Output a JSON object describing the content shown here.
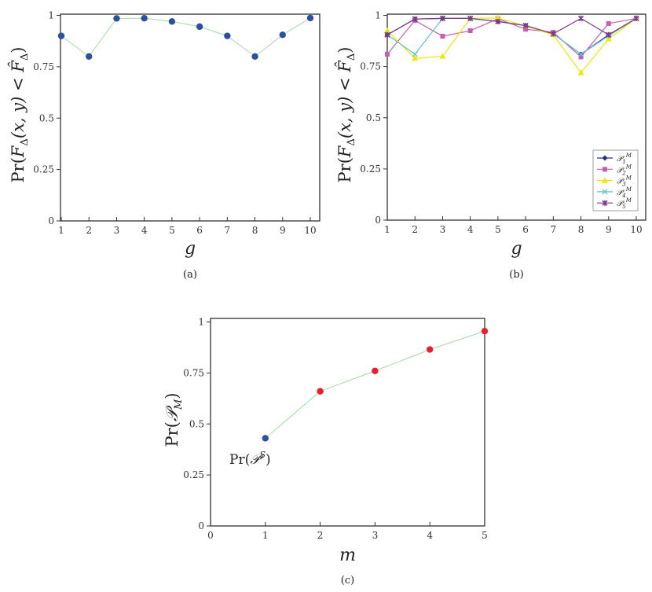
{
  "chart_data": [
    {
      "id": "a",
      "type": "line",
      "caption": "(a)",
      "title": "",
      "xlabel": "g",
      "ylabel": "Pr(F_Δ(x, y) < F̂_Δ)",
      "ylabel_parts": {
        "pre": "Pr(",
        "F": "F",
        "sub": "Δ",
        "mid": "(x, y) < ",
        "Fhat": "F̂",
        "sub2": "Δ",
        "post": ")"
      },
      "x": [
        1,
        2,
        3,
        4,
        5,
        6,
        7,
        8,
        9,
        10
      ],
      "xticks": [
        "1",
        "2",
        "3",
        "4",
        "5",
        "6",
        "7",
        "8",
        "9",
        "10"
      ],
      "yticks": [
        "0",
        "0.25",
        "0.5",
        "0.75",
        "1"
      ],
      "ylim": [
        0,
        1
      ],
      "xlim": [
        1,
        10
      ],
      "grid": false,
      "series": [
        {
          "name": "Pr",
          "values": [
            0.9,
            0.8,
            0.985,
            0.986,
            0.97,
            0.945,
            0.9,
            0.8,
            0.905,
            0.987
          ],
          "marker_color": "#2d4fa0",
          "line_color": "#9ad89a",
          "marker": "circle"
        }
      ]
    },
    {
      "id": "b",
      "type": "line",
      "caption": "(b)",
      "title": "",
      "xlabel": "g",
      "ylabel": "Pr(F_Δ(x, y) < F̂_Δ)",
      "ylabel_parts": {
        "pre": "Pr(",
        "F": "F",
        "sub": "Δ",
        "mid": "(x, y) < ",
        "Fhat": "F̂",
        "sub2": "Δ",
        "post": ")"
      },
      "x": [
        1,
        2,
        3,
        4,
        5,
        6,
        7,
        8,
        9,
        10
      ],
      "xticks": [
        "1",
        "2",
        "3",
        "4",
        "5",
        "6",
        "7",
        "8",
        "9",
        "10"
      ],
      "yticks": [
        "0",
        "0.25",
        "0.5",
        "0.75",
        "1"
      ],
      "ylim": [
        0,
        1
      ],
      "xlim": [
        1,
        10
      ],
      "grid": false,
      "legend_position": "lower right",
      "series": [
        {
          "name": "P1M",
          "label": "𝒫",
          "sub": "1",
          "sup": "M",
          "values": [
            0.905,
            0.982,
            0.985,
            0.985,
            0.97,
            0.95,
            0.91,
            0.81,
            0.905,
            0.985
          ],
          "color": "#2b2d7a",
          "marker": "diamond"
        },
        {
          "name": "P2M",
          "label": "𝒫",
          "sub": "2",
          "sup": "M",
          "values": [
            0.81,
            0.975,
            0.898,
            0.925,
            0.983,
            0.932,
            0.917,
            0.797,
            0.96,
            0.985
          ],
          "color": "#c85bb4",
          "marker": "square"
        },
        {
          "name": "P3M",
          "label": "𝒫",
          "sub": "3",
          "sup": "M",
          "values": [
            0.925,
            0.79,
            0.8,
            0.985,
            0.987,
            0.948,
            0.905,
            0.72,
            0.885,
            0.985
          ],
          "color": "#f2e600",
          "marker": "triangle"
        },
        {
          "name": "P4M",
          "label": "𝒫",
          "sub": "4",
          "sup": "M",
          "values": [
            0.905,
            0.81,
            0.985,
            0.985,
            0.97,
            0.95,
            0.91,
            0.81,
            0.9,
            0.985
          ],
          "color": "#63c2d8",
          "marker": "x"
        },
        {
          "name": "P5M",
          "label": "𝒫",
          "sub": "5",
          "sup": "M",
          "values": [
            0.905,
            0.982,
            0.985,
            0.985,
            0.97,
            0.95,
            0.91,
            0.985,
            0.905,
            0.985
          ],
          "color": "#7b3a8c",
          "marker": "star"
        }
      ]
    },
    {
      "id": "c",
      "type": "line",
      "caption": "(c)",
      "title": "",
      "xlabel": "m",
      "ylabel": "Pr(𝒫_M)",
      "ylabel_parts": {
        "pre": "Pr(",
        "P": "𝒫",
        "sub": "M",
        "post": ")"
      },
      "x": [
        1,
        2,
        3,
        4,
        5
      ],
      "xticks": [
        "0",
        "1",
        "2",
        "3",
        "4",
        "5"
      ],
      "yticks": [
        "0",
        "0.25",
        "0.5",
        "0.75",
        "1"
      ],
      "ylim": [
        0,
        1
      ],
      "xlim": [
        0,
        5
      ],
      "grid": false,
      "series": [
        {
          "name": "Pr(P_M)",
          "values": [
            0.43,
            0.66,
            0.76,
            0.865,
            0.955
          ],
          "marker_colors": [
            "#2d4fa0",
            "#e8202e",
            "#e8202e",
            "#e8202e",
            "#e8202e"
          ],
          "line_color": "#9ad89a",
          "marker": "circle"
        }
      ],
      "annotations": [
        {
          "text": "Pr(𝒫^S)",
          "pre": "Pr(",
          "P": "𝒫",
          "sup": "S",
          "post": ")",
          "at_x": 1,
          "at_y": 0.43
        }
      ]
    }
  ]
}
